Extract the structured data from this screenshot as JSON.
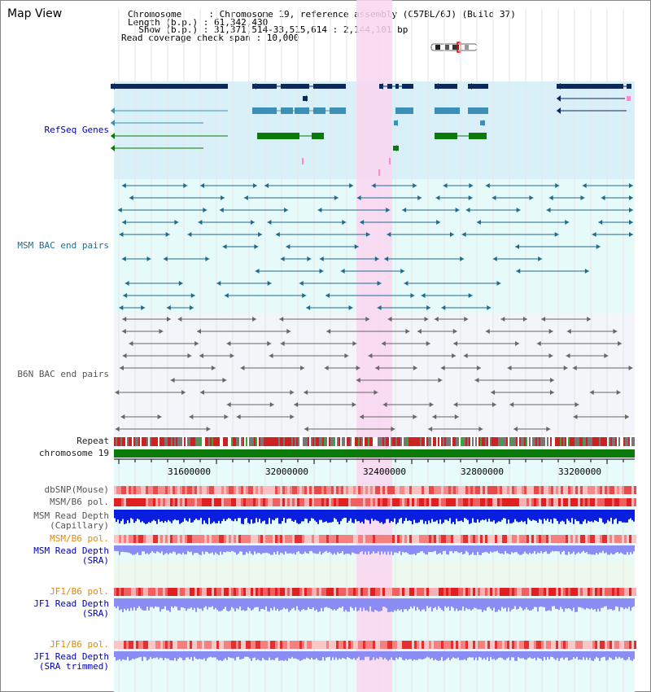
{
  "header": {
    "view_title": "Map View",
    "chromosome_line": "Chromosome     : Chromosome 19, reference assembly (C57BL/6J) (Build 37)",
    "length_line": "Length (b.p.) : 61,342,430",
    "show_line": "  Show (b.p.) : 31,371,514-33,515,614 : 2,144,101 bp",
    "coverage_line": "Read coverage check span : 10,000"
  },
  "tracks": {
    "refseq": "RefSeq Genes",
    "msm_bac": "MSM BAC end pairs",
    "b6n_bac": "B6N BAC end pairs",
    "repeat": "Repeat",
    "chromosome": "chromosome 19",
    "dbsnp": "dbSNP(Mouse)",
    "msm_b6_pol": "MSM/B6 pol.",
    "msm_depth_cap_1": "MSM Read Depth",
    "msm_depth_cap_2": "(Capillary)",
    "msm_b6_pol_2": "MSM/B6 pol.",
    "msm_depth_sra_1": "MSM Read Depth",
    "msm_depth_sra_2": "(SRA)",
    "jf1_b6_pol": "JF1/B6 pol.",
    "jf1_depth_sra_1": "JF1 Read Depth",
    "jf1_depth_sra_2": "(SRA)",
    "jf1_b6_pol_2": "JF1/B6 pol.",
    "jf1_depth_trim_1": "JF1 Read Depth",
    "jf1_depth_trim_2": "(SRA trimmed)"
  },
  "ruler": {
    "ticks": [
      "31600000",
      "32000000",
      "32400000",
      "32800000",
      "33200000"
    ]
  },
  "colors": {
    "refseq_bg": "#d9f0f8",
    "msm_bg": "#e6fafa",
    "b6n_bg": "#f4f4fb",
    "highlight": "#f9d6f0",
    "gene_dark": "#0a2a5e",
    "gene_light": "#3c8fb5",
    "gene_green": "#0a7a0a",
    "chrom_green": "#0a7a0a",
    "depth_dark": "#0a1ee0",
    "depth_light": "#8c8cf5"
  }
}
